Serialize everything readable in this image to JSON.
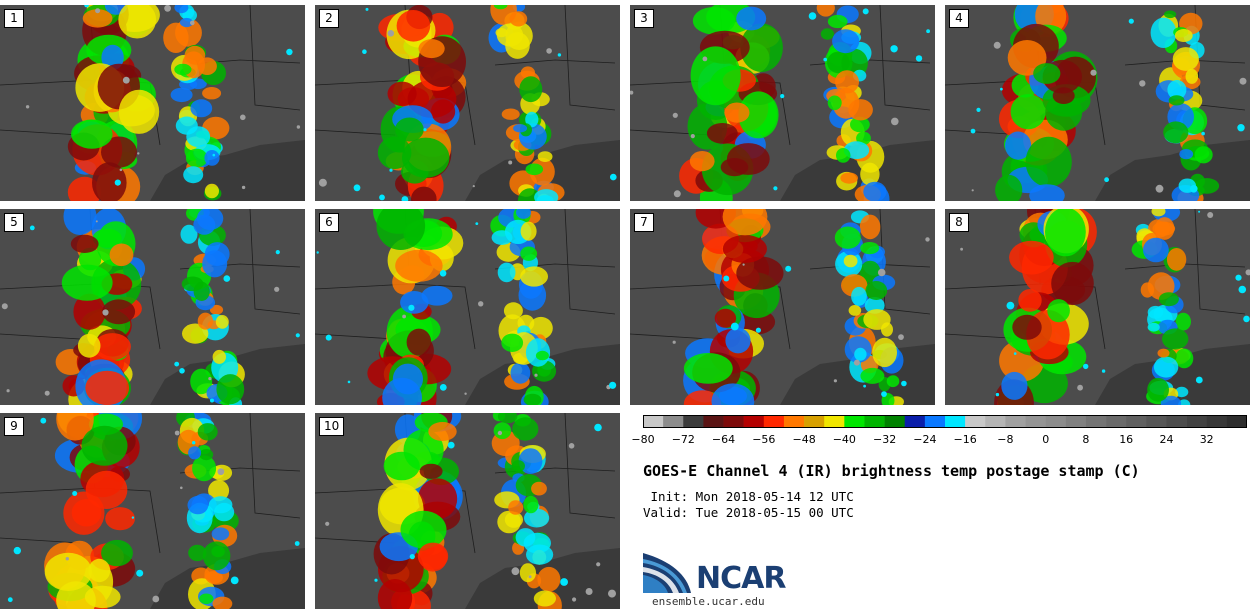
{
  "title": "GOES-E Channel 4 (IR) brightness temp postage stamp (C)",
  "init": " Init: Mon 2018-05-14 12 UTC",
  "valid": "Valid: Tue 2018-05-15 00 UTC",
  "url": "ensemble.ucar.edu",
  "logo_text": "NCAR",
  "panels": [
    {
      "label": "1"
    },
    {
      "label": "2"
    },
    {
      "label": "3"
    },
    {
      "label": "4"
    },
    {
      "label": "5"
    },
    {
      "label": "6"
    },
    {
      "label": "7"
    },
    {
      "label": "8"
    },
    {
      "label": "9"
    },
    {
      "label": "10"
    }
  ],
  "colorbar": {
    "min": -80,
    "max": 40,
    "step": 4,
    "tick_labels": [
      "−80",
      "−72",
      "−64",
      "−56",
      "−48",
      "−40",
      "−32",
      "−24",
      "−16",
      "−8",
      "0",
      "8",
      "16",
      "24",
      "32"
    ],
    "tick_values": [
      -80,
      -72,
      -64,
      -56,
      -48,
      -40,
      -32,
      -24,
      -16,
      -8,
      0,
      8,
      16,
      24,
      32
    ],
    "colors": [
      "#c8c8c8",
      "#8c8c8c",
      "#3c3c3c",
      "#5a1414",
      "#7d0a0a",
      "#b40000",
      "#ff2800",
      "#ff7800",
      "#d7a000",
      "#f0e600",
      "#00e600",
      "#00b400",
      "#008200",
      "#0a1eaa",
      "#0a78ff",
      "#00e6ff",
      "#c8c8c8",
      "#b4b4b4",
      "#a0a0a0",
      "#949494",
      "#8c8c8c",
      "#808080",
      "#747474",
      "#6a6a6a",
      "#606060",
      "#565656",
      "#4c4c4c",
      "#424242",
      "#383838",
      "#2e2e2e"
    ]
  }
}
